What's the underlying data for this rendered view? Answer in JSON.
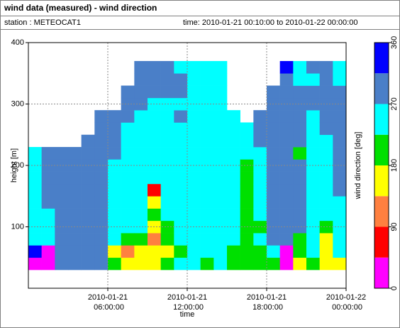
{
  "header": {
    "title": "wind data (measured) - wind direction",
    "station": "station : METEOCAT1",
    "time": "time: 2010-01-21 00:10:00 to 2010-01-22 00:00:00"
  },
  "chart_data": {
    "type": "heatmap",
    "xlabel": "time",
    "ylabel": "height [m]",
    "xlim": [
      "2010-01-21 00:00:00",
      "2010-01-22 00:00:00"
    ],
    "xticks": [
      "2010-01-21 06:00:00",
      "2010-01-21 12:00:00",
      "2010-01-21 18:00:00",
      "2010-01-22 00:00:00"
    ],
    "ylim": [
      0,
      400
    ],
    "yticks": [
      100,
      200,
      300,
      400
    ],
    "grid": true,
    "x": [
      "2010-01-21 00:30:00",
      "2010-01-21 01:30:00",
      "2010-01-21 02:30:00",
      "2010-01-21 03:30:00",
      "2010-01-21 04:30:00",
      "2010-01-21 05:30:00",
      "2010-01-21 06:30:00",
      "2010-01-21 07:30:00",
      "2010-01-21 08:30:00",
      "2010-01-21 09:30:00",
      "2010-01-21 10:30:00",
      "2010-01-21 11:30:00",
      "2010-01-21 12:30:00",
      "2010-01-21 13:30:00",
      "2010-01-21 14:30:00",
      "2010-01-21 15:30:00",
      "2010-01-21 16:30:00",
      "2010-01-21 17:30:00",
      "2010-01-21 18:30:00",
      "2010-01-21 19:30:00",
      "2010-01-21 20:30:00",
      "2010-01-21 21:30:00",
      "2010-01-21 22:30:00",
      "2010-01-21 23:30:00"
    ],
    "y": [
      40,
      60,
      80,
      100,
      120,
      140,
      160,
      180,
      200,
      220,
      240,
      260,
      280,
      300,
      320,
      340,
      360
    ],
    "values": [
      [
        20,
        340,
        250,
        250,
        250,
        250,
        250,
        250,
        250,
        250,
        null,
        null,
        null,
        null,
        null,
        null,
        null
      ],
      [
        20,
        20,
        250,
        250,
        250,
        290,
        290,
        290,
        290,
        290,
        null,
        null,
        null,
        null,
        null,
        null,
        null
      ],
      [
        290,
        290,
        290,
        290,
        290,
        290,
        290,
        290,
        290,
        290,
        null,
        null,
        null,
        null,
        null,
        null,
        null
      ],
      [
        290,
        290,
        290,
        290,
        290,
        290,
        290,
        290,
        290,
        290,
        null,
        null,
        null,
        null,
        null,
        null,
        null
      ],
      [
        290,
        290,
        290,
        290,
        290,
        290,
        290,
        290,
        290,
        290,
        290,
        null,
        null,
        null,
        null,
        null,
        null
      ],
      [
        290,
        290,
        290,
        290,
        290,
        290,
        290,
        290,
        290,
        290,
        290,
        290,
        290,
        null,
        null,
        null,
        null
      ],
      [
        200,
        160,
        250,
        250,
        250,
        250,
        250,
        250,
        250,
        290,
        290,
        290,
        290,
        null,
        null,
        null,
        null
      ],
      [
        160,
        110,
        200,
        250,
        250,
        250,
        250,
        250,
        250,
        250,
        250,
        250,
        290,
        290,
        290,
        null,
        null
      ],
      [
        160,
        160,
        200,
        250,
        250,
        250,
        250,
        250,
        250,
        250,
        250,
        250,
        250,
        290,
        290,
        290,
        290
      ],
      [
        160,
        160,
        110,
        160,
        200,
        160,
        60,
        250,
        250,
        250,
        250,
        250,
        250,
        250,
        290,
        290,
        290
      ],
      [
        200,
        160,
        200,
        200,
        250,
        250,
        250,
        250,
        250,
        250,
        250,
        250,
        250,
        250,
        290,
        290,
        290
      ],
      [
        250,
        200,
        250,
        250,
        250,
        250,
        250,
        250,
        250,
        250,
        250,
        250,
        290,
        250,
        290,
        290,
        250
      ],
      [
        250,
        250,
        250,
        250,
        250,
        250,
        250,
        250,
        250,
        250,
        250,
        250,
        250,
        250,
        250,
        250,
        250
      ],
      [
        200,
        250,
        250,
        250,
        250,
        250,
        250,
        250,
        250,
        250,
        250,
        250,
        250,
        250,
        250,
        250,
        250
      ],
      [
        250,
        250,
        250,
        250,
        250,
        250,
        250,
        250,
        250,
        250,
        250,
        250,
        250,
        250,
        250,
        250,
        250
      ],
      [
        200,
        200,
        250,
        250,
        250,
        250,
        250,
        250,
        250,
        250,
        250,
        250,
        250,
        null,
        null,
        null,
        null
      ],
      [
        200,
        200,
        200,
        200,
        200,
        200,
        200,
        200,
        200,
        250,
        250,
        250,
        null,
        null,
        null,
        null,
        null
      ],
      [
        200,
        200,
        250,
        200,
        250,
        250,
        250,
        250,
        250,
        250,
        290,
        290,
        290,
        null,
        null,
        null,
        null
      ],
      [
        200,
        250,
        290,
        290,
        290,
        290,
        290,
        290,
        290,
        290,
        290,
        290,
        290,
        290,
        290,
        null,
        null
      ],
      [
        20,
        20,
        290,
        290,
        290,
        290,
        290,
        290,
        290,
        290,
        290,
        290,
        290,
        290,
        290,
        290,
        340
      ],
      [
        160,
        200,
        200,
        290,
        290,
        290,
        290,
        290,
        290,
        200,
        290,
        290,
        290,
        290,
        290,
        250,
        250
      ],
      [
        200,
        250,
        250,
        250,
        250,
        250,
        250,
        250,
        250,
        250,
        250,
        250,
        250,
        290,
        290,
        250,
        290
      ],
      [
        160,
        160,
        160,
        200,
        250,
        250,
        250,
        250,
        250,
        250,
        250,
        290,
        290,
        290,
        290,
        290,
        290
      ],
      [
        160,
        250,
        250,
        250,
        250,
        250,
        290,
        290,
        290,
        290,
        290,
        290,
        290,
        290,
        290,
        250,
        250
      ]
    ],
    "colorbar": {
      "label": "wind direction [deg]",
      "bins": [
        0,
        45,
        90,
        135,
        180,
        225,
        270,
        315,
        360
      ],
      "colors": [
        "#ff00ff",
        "#ff0000",
        "#ff8040",
        "#ffff00",
        "#00e000",
        "#00ffff",
        "#4a7fc8",
        "#0000ff"
      ],
      "lim": [
        0,
        360
      ],
      "ticks": [
        0,
        90,
        180,
        270,
        360
      ]
    }
  }
}
